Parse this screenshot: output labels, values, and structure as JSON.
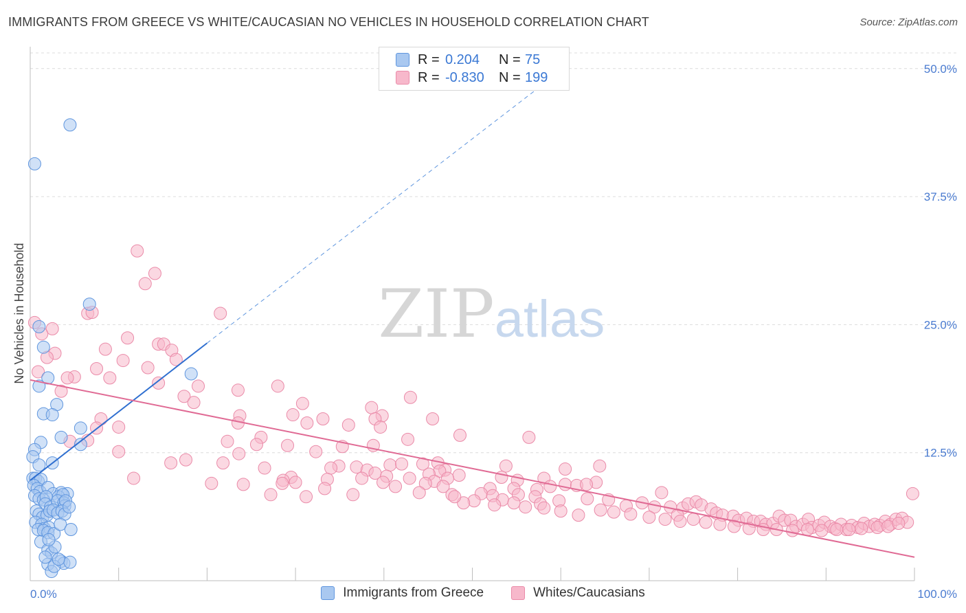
{
  "title": "IMMIGRANTS FROM GREECE VS WHITE/CAUCASIAN NO VEHICLES IN HOUSEHOLD CORRELATION CHART",
  "source": "Source: ZipAtlas.com",
  "watermark": {
    "zip": "ZIP",
    "atlas": "atlas"
  },
  "colors": {
    "blue_fill": "#a9c8f0",
    "blue_stroke": "#5e95de",
    "blue_line": "#2f6fd0",
    "pink_fill": "#f7b8cb",
    "pink_stroke": "#ea8aa8",
    "pink_line": "#e06a94",
    "tick": "#4a7bd0",
    "grid": "#dcdcdc"
  },
  "legend": {
    "rows": [
      {
        "r_label": "R =",
        "r_value": "0.204",
        "n_label": "N =",
        "n_value": "75"
      },
      {
        "r_label": "R =",
        "r_value": "-0.830",
        "n_label": "N =",
        "n_value": "199"
      }
    ]
  },
  "bottom_legend": [
    "Immigrants from Greece",
    "Whites/Caucasians"
  ],
  "chart_data": {
    "type": "scatter",
    "title": "IMMIGRANTS FROM GREECE VS WHITE/CAUCASIAN NO VEHICLES IN HOUSEHOLD CORRELATION CHART",
    "xlabel": "",
    "ylabel": "No Vehicles in Household",
    "xlim": [
      0,
      100
    ],
    "ylim": [
      0,
      52
    ],
    "x_tick_labels": [
      "0.0%",
      "100.0%"
    ],
    "y_ticks": [
      12.5,
      25.0,
      37.5,
      50.0
    ],
    "y_tick_labels": [
      "12.5%",
      "25.0%",
      "37.5%",
      "50.0%"
    ],
    "grid": true,
    "legend_position": "top-center",
    "series": [
      {
        "name": "Immigrants from Greece",
        "r": 0.204,
        "n": 75,
        "trend": {
          "x0": 0,
          "y0": 9.8,
          "x1": 20,
          "y1": 23.2,
          "dash_to_x": 57,
          "dash_to_y": 47.8
        },
        "points": [
          [
            4.5,
            44.5
          ],
          [
            0.5,
            40.7
          ],
          [
            6.7,
            27.0
          ],
          [
            18.2,
            20.2
          ],
          [
            1.0,
            24.8
          ],
          [
            1.5,
            22.8
          ],
          [
            2.0,
            19.8
          ],
          [
            1.0,
            19.0
          ],
          [
            1.5,
            16.3
          ],
          [
            3.0,
            17.2
          ],
          [
            2.5,
            16.2
          ],
          [
            5.7,
            14.9
          ],
          [
            2.5,
            11.5
          ],
          [
            3.5,
            14.0
          ],
          [
            1.2,
            13.5
          ],
          [
            0.5,
            12.8
          ],
          [
            0.3,
            12.1
          ],
          [
            1.0,
            11.3
          ],
          [
            5.7,
            13.3
          ],
          [
            0.3,
            10.0
          ],
          [
            0.6,
            10.0
          ],
          [
            0.9,
            9.7
          ],
          [
            1.2,
            9.9
          ],
          [
            0.4,
            9.3
          ],
          [
            0.8,
            9.0
          ],
          [
            1.1,
            8.7
          ],
          [
            2.0,
            9.1
          ],
          [
            2.6,
            8.5
          ],
          [
            3.5,
            8.6
          ],
          [
            4.2,
            8.5
          ],
          [
            0.5,
            8.3
          ],
          [
            1.0,
            8.0
          ],
          [
            1.5,
            7.9
          ],
          [
            1.8,
            8.2
          ],
          [
            3.2,
            8.2
          ],
          [
            3.7,
            8.4
          ],
          [
            1.7,
            7.5
          ],
          [
            2.3,
            7.2
          ],
          [
            3.1,
            7.8
          ],
          [
            3.8,
            7.6
          ],
          [
            3.9,
            7.3
          ],
          [
            4.0,
            7.8
          ],
          [
            0.7,
            6.8
          ],
          [
            1.0,
            6.5
          ],
          [
            1.4,
            6.2
          ],
          [
            1.9,
            6.4
          ],
          [
            2.2,
            6.8
          ],
          [
            2.6,
            6.9
          ],
          [
            3.1,
            6.6
          ],
          [
            3.6,
            6.8
          ],
          [
            3.9,
            6.5
          ],
          [
            4.4,
            7.2
          ],
          [
            0.6,
            5.7
          ],
          [
            1.3,
            5.5
          ],
          [
            1.6,
            5.1
          ],
          [
            2.1,
            5.2
          ],
          [
            0.9,
            5.0
          ],
          [
            1.5,
            4.9
          ],
          [
            2.0,
            4.7
          ],
          [
            2.7,
            4.6
          ],
          [
            3.4,
            5.5
          ],
          [
            1.2,
            3.8
          ],
          [
            2.0,
            3.0
          ],
          [
            2.4,
            2.7
          ],
          [
            2.8,
            3.3
          ],
          [
            3.5,
            1.9
          ],
          [
            3.8,
            1.7
          ],
          [
            4.5,
            1.8
          ],
          [
            2.0,
            1.6
          ],
          [
            2.4,
            0.9
          ],
          [
            2.7,
            1.4
          ],
          [
            3.2,
            2.1
          ],
          [
            2.1,
            4.0
          ],
          [
            1.7,
            2.3
          ],
          [
            4.6,
            5.0
          ]
        ]
      },
      {
        "name": "Whites/Caucasians",
        "r": -0.83,
        "n": 199,
        "trend": {
          "x0": 0,
          "y0": 19.6,
          "x1": 100,
          "y1": 2.3
        },
        "points": [
          [
            0.5,
            25.2
          ],
          [
            2.5,
            24.6
          ],
          [
            1.3,
            24.1
          ],
          [
            6.5,
            26.1
          ],
          [
            7.0,
            26.2
          ],
          [
            12.1,
            32.2
          ],
          [
            14.1,
            30.0
          ],
          [
            13.0,
            29.0
          ],
          [
            21.5,
            26.1
          ],
          [
            11.0,
            23.7
          ],
          [
            14.5,
            23.1
          ],
          [
            15.1,
            23.1
          ],
          [
            16.0,
            22.5
          ],
          [
            8.5,
            22.6
          ],
          [
            2.8,
            22.2
          ],
          [
            1.9,
            21.8
          ],
          [
            10.5,
            21.5
          ],
          [
            16.5,
            21.6
          ],
          [
            13.3,
            20.8
          ],
          [
            7.5,
            20.7
          ],
          [
            0.9,
            20.4
          ],
          [
            5.0,
            19.9
          ],
          [
            4.2,
            19.8
          ],
          [
            9.0,
            19.8
          ],
          [
            14.5,
            19.3
          ],
          [
            19.0,
            19.0
          ],
          [
            28.0,
            19.0
          ],
          [
            23.5,
            18.6
          ],
          [
            3.5,
            18.5
          ],
          [
            17.4,
            18.0
          ],
          [
            43.0,
            17.9
          ],
          [
            18.5,
            17.4
          ],
          [
            30.8,
            17.3
          ],
          [
            38.6,
            16.9
          ],
          [
            39.8,
            16.1
          ],
          [
            23.7,
            16.1
          ],
          [
            33.1,
            15.8
          ],
          [
            39.0,
            15.8
          ],
          [
            8.0,
            15.8
          ],
          [
            29.7,
            16.2
          ],
          [
            45.5,
            15.8
          ],
          [
            23.5,
            15.4
          ],
          [
            31.3,
            15.4
          ],
          [
            10.0,
            15.0
          ],
          [
            36.0,
            15.2
          ],
          [
            7.5,
            14.9
          ],
          [
            39.6,
            15.0
          ],
          [
            42.7,
            13.8
          ],
          [
            48.6,
            14.2
          ],
          [
            56.4,
            14.0
          ],
          [
            26.1,
            14.0
          ],
          [
            6.5,
            13.7
          ],
          [
            4.5,
            13.6
          ],
          [
            22.3,
            13.6
          ],
          [
            25.6,
            13.3
          ],
          [
            29.1,
            13.2
          ],
          [
            35.3,
            13.1
          ],
          [
            38.8,
            13.2
          ],
          [
            32.3,
            12.6
          ],
          [
            10.0,
            12.6
          ],
          [
            23.6,
            12.4
          ],
          [
            17.6,
            11.8
          ],
          [
            15.9,
            11.5
          ],
          [
            21.8,
            11.5
          ],
          [
            44.4,
            11.4
          ],
          [
            40.7,
            11.3
          ],
          [
            42.0,
            11.4
          ],
          [
            46.1,
            11.5
          ],
          [
            34.9,
            11.2
          ],
          [
            36.9,
            11.1
          ],
          [
            26.5,
            11.0
          ],
          [
            34.0,
            11.0
          ],
          [
            38.1,
            10.8
          ],
          [
            39.0,
            10.5
          ],
          [
            46.9,
            10.8
          ],
          [
            53.8,
            11.2
          ],
          [
            60.5,
            10.9
          ],
          [
            64.4,
            11.2
          ],
          [
            46.3,
            10.7
          ],
          [
            40.3,
            10.2
          ],
          [
            45.1,
            10.4
          ],
          [
            48.5,
            10.3
          ],
          [
            11.7,
            10.0
          ],
          [
            29.5,
            10.1
          ],
          [
            30.0,
            9.6
          ],
          [
            28.6,
            9.8
          ],
          [
            33.6,
            9.9
          ],
          [
            37.5,
            10.0
          ],
          [
            42.9,
            10.0
          ],
          [
            45.7,
            9.7
          ],
          [
            47.2,
            10.0
          ],
          [
            53.3,
            10.1
          ],
          [
            55.1,
            9.8
          ],
          [
            58.1,
            10.0
          ],
          [
            60.5,
            9.4
          ],
          [
            61.8,
            9.3
          ],
          [
            64.0,
            9.6
          ],
          [
            62.9,
            9.4
          ],
          [
            54.7,
            9.0
          ],
          [
            57.3,
            8.9
          ],
          [
            58.8,
            9.2
          ],
          [
            52.0,
            9.0
          ],
          [
            41.3,
            9.2
          ],
          [
            39.9,
            9.6
          ],
          [
            44.7,
            9.5
          ],
          [
            46.7,
            9.2
          ],
          [
            28.5,
            9.5
          ],
          [
            33.3,
            9.0
          ],
          [
            47.7,
            8.4
          ],
          [
            51.0,
            8.5
          ],
          [
            52.3,
            8.3
          ],
          [
            55.2,
            8.4
          ],
          [
            57.1,
            8.2
          ],
          [
            50.2,
            7.8
          ],
          [
            53.4,
            7.9
          ],
          [
            54.7,
            7.6
          ],
          [
            57.7,
            7.5
          ],
          [
            58.1,
            7.1
          ],
          [
            59.8,
            7.8
          ],
          [
            63.0,
            8.0
          ],
          [
            65.4,
            7.9
          ],
          [
            67.4,
            7.3
          ],
          [
            69.2,
            7.6
          ],
          [
            70.6,
            7.2
          ],
          [
            71.4,
            8.6
          ],
          [
            72.4,
            7.2
          ],
          [
            73.8,
            7.1
          ],
          [
            73.2,
            6.4
          ],
          [
            74.4,
            7.5
          ],
          [
            75.3,
            7.7
          ],
          [
            75.9,
            7.4
          ],
          [
            77.0,
            7.0
          ],
          [
            77.6,
            6.6
          ],
          [
            78.3,
            6.4
          ],
          [
            79.5,
            6.3
          ],
          [
            80.1,
            5.9
          ],
          [
            81.0,
            6.1
          ],
          [
            81.8,
            5.8
          ],
          [
            82.6,
            5.8
          ],
          [
            83.2,
            5.5
          ],
          [
            84.0,
            5.6
          ],
          [
            84.7,
            6.3
          ],
          [
            85.3,
            5.9
          ],
          [
            86.0,
            5.9
          ],
          [
            86.6,
            5.3
          ],
          [
            87.4,
            5.5
          ],
          [
            88.0,
            6.0
          ],
          [
            88.4,
            5.2
          ],
          [
            89.2,
            5.4
          ],
          [
            89.8,
            5.7
          ],
          [
            90.5,
            5.3
          ],
          [
            91.0,
            5.1
          ],
          [
            91.7,
            5.5
          ],
          [
            92.3,
            5.0
          ],
          [
            92.9,
            5.4
          ],
          [
            93.6,
            5.2
          ],
          [
            94.3,
            5.6
          ],
          [
            94.9,
            5.3
          ],
          [
            95.5,
            5.5
          ],
          [
            96.1,
            5.4
          ],
          [
            96.7,
            5.8
          ],
          [
            97.3,
            5.5
          ],
          [
            97.9,
            6.0
          ],
          [
            98.6,
            6.1
          ],
          [
            99.2,
            5.7
          ],
          [
            99.8,
            8.5
          ],
          [
            64.5,
            6.9
          ],
          [
            66.0,
            6.7
          ],
          [
            67.9,
            6.5
          ],
          [
            70.0,
            6.2
          ],
          [
            71.8,
            6.0
          ],
          [
            73.5,
            5.8
          ],
          [
            75.0,
            6.0
          ],
          [
            76.4,
            5.7
          ],
          [
            78.0,
            5.5
          ],
          [
            79.6,
            5.3
          ],
          [
            81.3,
            5.1
          ],
          [
            82.9,
            5.0
          ],
          [
            84.4,
            5.0
          ],
          [
            86.2,
            4.9
          ],
          [
            87.9,
            5.0
          ],
          [
            89.5,
            4.9
          ],
          [
            91.2,
            5.0
          ],
          [
            92.6,
            5.0
          ],
          [
            94.0,
            5.1
          ],
          [
            95.8,
            5.2
          ],
          [
            97.0,
            5.3
          ],
          [
            98.2,
            5.6
          ],
          [
            62.0,
            6.4
          ],
          [
            60.0,
            6.8
          ],
          [
            56.0,
            7.2
          ],
          [
            52.5,
            7.4
          ],
          [
            49.0,
            7.6
          ],
          [
            48.0,
            8.2
          ],
          [
            44.0,
            8.6
          ],
          [
            36.5,
            8.4
          ],
          [
            31.2,
            8.2
          ],
          [
            27.2,
            8.4
          ],
          [
            24.1,
            9.4
          ],
          [
            20.5,
            9.5
          ]
        ]
      }
    ]
  }
}
